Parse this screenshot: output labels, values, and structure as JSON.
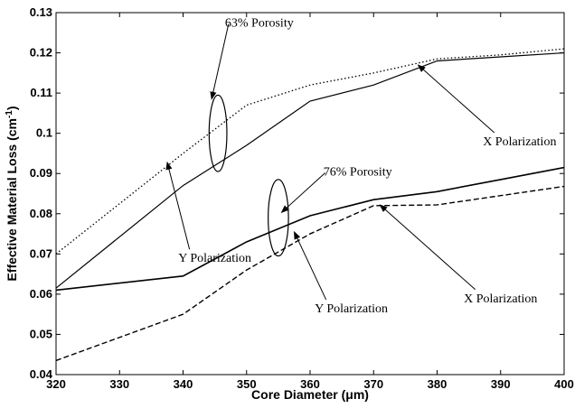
{
  "chart_data": {
    "type": "line",
    "title": "",
    "xlabel": "Core Diameter (μm)",
    "ylabel": "Effective Material Loss (cm",
    "ylabel_sup": "-1",
    "ylabel_close": ")",
    "xlim": [
      320,
      400
    ],
    "ylim": [
      0.04,
      0.13
    ],
    "xticks": [
      320,
      330,
      340,
      350,
      360,
      370,
      380,
      390,
      400
    ],
    "yticks": [
      0.04,
      0.05,
      0.06,
      0.07,
      0.08,
      0.09,
      0.1,
      0.11,
      0.12,
      0.13
    ],
    "grid": false,
    "series": [
      {
        "style": "dotted",
        "x": [
          320,
          340,
          350,
          360,
          370,
          380,
          390,
          400
        ],
        "y": [
          0.07,
          0.095,
          0.107,
          0.112,
          0.115,
          0.1185,
          0.1195,
          0.121
        ]
      },
      {
        "style": "solid",
        "x": [
          320,
          340,
          350,
          360,
          370,
          380,
          390,
          400
        ],
        "y": [
          0.0615,
          0.087,
          0.097,
          0.108,
          0.112,
          0.118,
          0.119,
          0.12
        ]
      },
      {
        "style": "solid",
        "x": [
          320,
          340,
          350,
          360,
          370,
          380,
          390,
          400
        ],
        "y": [
          0.061,
          0.0645,
          0.073,
          0.0795,
          0.0835,
          0.0855,
          0.0885,
          0.0915
        ]
      },
      {
        "style": "dashed",
        "x": [
          320,
          340,
          350,
          360,
          370,
          380,
          390,
          400
        ],
        "y": [
          0.0435,
          0.055,
          0.066,
          0.075,
          0.082,
          0.0822,
          0.0845,
          0.0868
        ]
      }
    ],
    "annotations": [
      {
        "text": "63% Porosity",
        "tx": 352,
        "ty": 0.1265,
        "ax": 344.5,
        "ay": 0.1085
      },
      {
        "text": "X Polarization",
        "tx": 393,
        "ty": 0.097,
        "ax": 377,
        "ay": 0.117
      },
      {
        "text": "Y Polarization",
        "tx": 345,
        "ty": 0.068,
        "ax": 337.5,
        "ay": 0.0928
      },
      {
        "text": "76% Porosity",
        "tx": 367.5,
        "ty": 0.0895,
        "ax": 355.5,
        "ay": 0.0803
      },
      {
        "text": "X Polarization",
        "tx": 390,
        "ty": 0.058,
        "ax": 371,
        "ay": 0.0822
      },
      {
        "text": "Y Polarization",
        "tx": 366.5,
        "ty": 0.0555,
        "ax": 357.5,
        "ay": 0.0755
      }
    ],
    "ellipses": [
      {
        "cx": 345.5,
        "cy": 0.1,
        "rx": 1.4,
        "ry": 0.0095
      },
      {
        "cx": 355,
        "cy": 0.079,
        "rx": 1.6,
        "ry": 0.0095
      }
    ]
  }
}
